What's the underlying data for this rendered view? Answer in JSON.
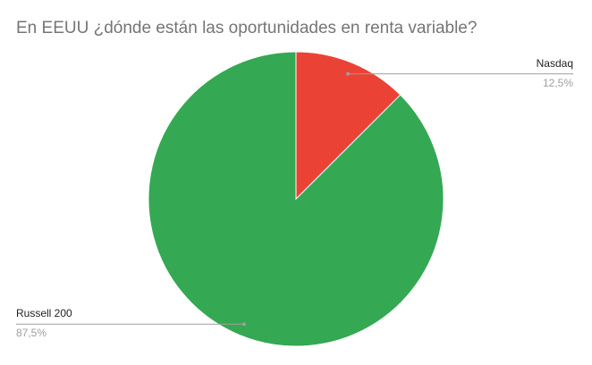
{
  "chart_data": {
    "type": "pie",
    "title": "En EEUU ¿dónde están las oportunidades en renta variable?",
    "slices": [
      {
        "label": "Nasdaq",
        "value": 12.5,
        "value_label": "12,5%",
        "color": "#ea4335"
      },
      {
        "label": "Russell 200",
        "value": 87.5,
        "value_label": "87,5%",
        "color": "#34a853"
      }
    ],
    "legend": "none",
    "label_position": "outside-with-leader-lines"
  }
}
